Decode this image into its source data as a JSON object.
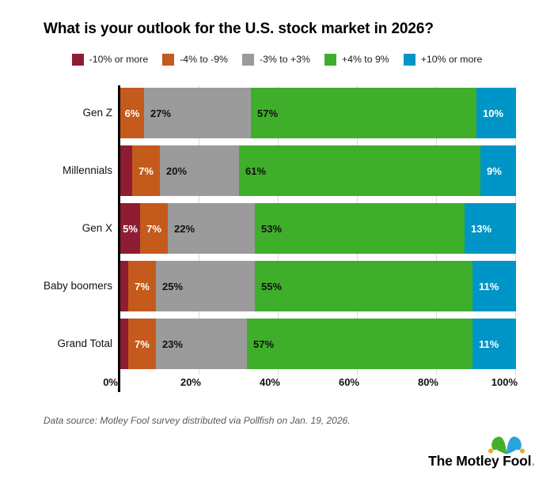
{
  "chart_data": {
    "type": "bar",
    "stacked": true,
    "orientation": "horizontal",
    "title": "What is your outlook for the U.S. stock market in 2026?",
    "categories": [
      "Gen Z",
      "Millennials",
      "Gen X",
      "Baby boomers",
      "Grand Total"
    ],
    "series": [
      {
        "name": "-10% or more",
        "color": "#8e1c33",
        "label_color": "#ffffff",
        "label_align": "center",
        "values": [
          0,
          3,
          5,
          2,
          2
        ],
        "labels": [
          "",
          "",
          "5%",
          "",
          ""
        ]
      },
      {
        "name": "-4% to -9%",
        "color": "#c45a1c",
        "label_color": "#ffffff",
        "label_align": "center",
        "values": [
          6,
          7,
          7,
          7,
          7
        ],
        "labels": [
          "6%",
          "7%",
          "7%",
          "7%",
          "7%"
        ]
      },
      {
        "name": "-3% to +3%",
        "color": "#9b9b9b",
        "label_color": "#111111",
        "label_align": "left",
        "values": [
          27,
          20,
          22,
          25,
          23
        ],
        "labels": [
          "27%",
          "20%",
          "22%",
          "25%",
          "23%"
        ]
      },
      {
        "name": "+4% to 9%",
        "color": "#3fae2a",
        "label_color": "#111111",
        "label_align": "left",
        "values": [
          57,
          61,
          53,
          55,
          57
        ],
        "labels": [
          "57%",
          "61%",
          "53%",
          "55%",
          "57%"
        ]
      },
      {
        "name": "+10% or more",
        "color": "#0095c7",
        "label_color": "#ffffff",
        "label_align": "left",
        "values": [
          10,
          9,
          13,
          11,
          11
        ],
        "labels": [
          "10%",
          "9%",
          "13%",
          "11%",
          "11%"
        ]
      }
    ],
    "x_ticks": [
      "0%",
      "20%",
      "40%",
      "60%",
      "80%",
      "100%"
    ],
    "xlim": [
      0,
      100
    ],
    "xlabel": "",
    "ylabel": "",
    "gridlines": true,
    "grid_color": "#dadada",
    "axis_color": "#000000",
    "legend_position": "top"
  },
  "footer": {
    "source": "Data source: Motley Fool survey distributed via Pollfish on Jan. 19, 2026."
  },
  "logo": {
    "text": "The Motley Fool",
    "period": ".",
    "hat_green": "#43b02a",
    "hat_blue": "#29a3dc",
    "hat_ball": "#f2a51f"
  }
}
